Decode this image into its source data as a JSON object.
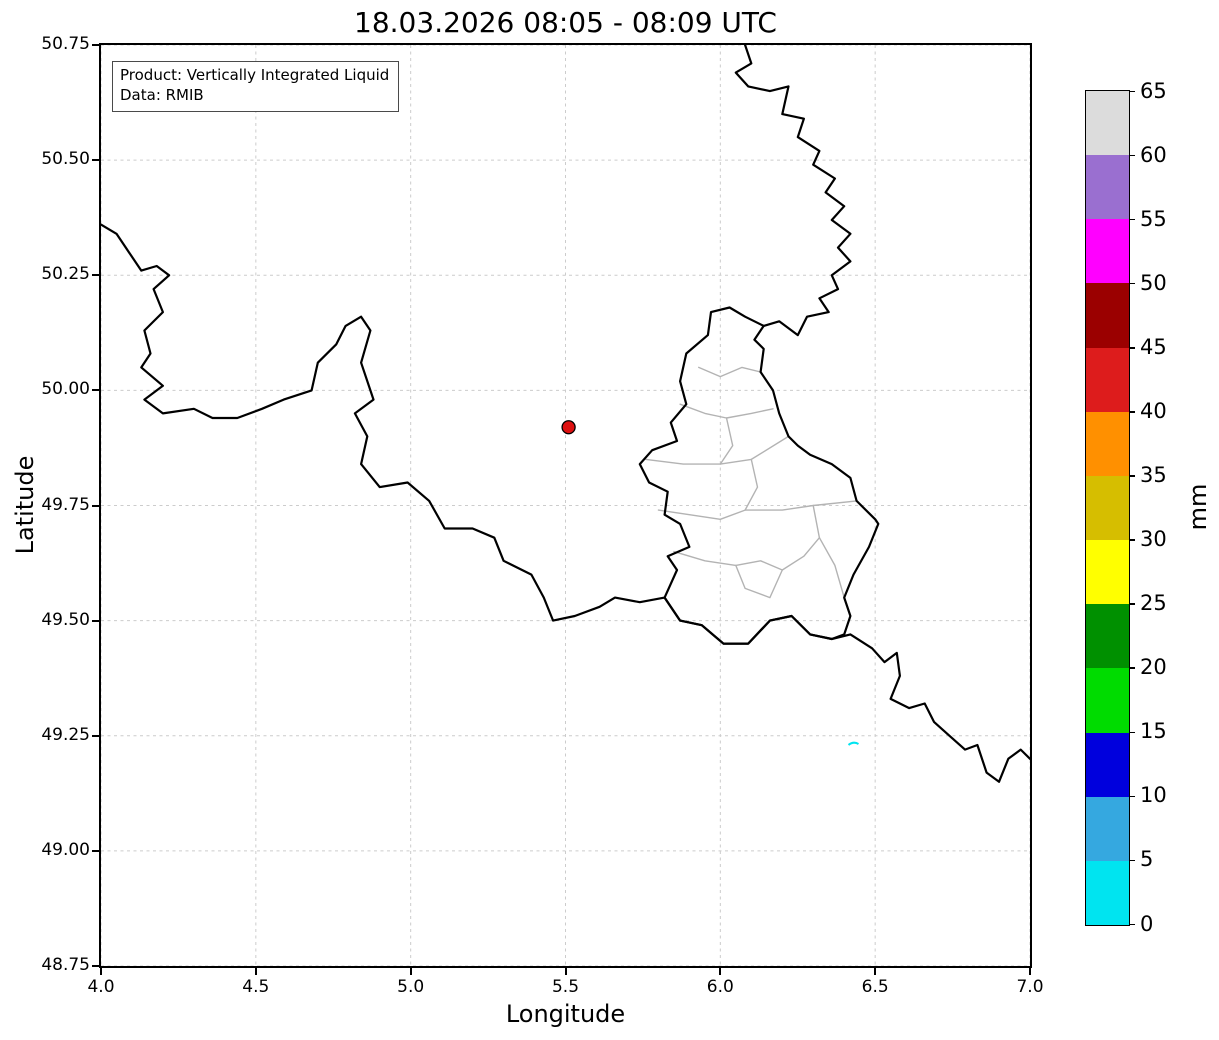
{
  "title": "18.03.2026 08:05 - 08:09 UTC",
  "annotation": {
    "line1": "Product: Vertically Integrated Liquid",
    "line2": "Data: RMIB"
  },
  "axes": {
    "xlabel": "Longitude",
    "ylabel": "Latitude",
    "xlim": [
      4.0,
      7.0
    ],
    "ylim": [
      48.75,
      50.75
    ],
    "xticks": [
      "4.0",
      "4.5",
      "5.0",
      "5.5",
      "6.0",
      "6.5",
      "7.0"
    ],
    "yticks": [
      "48.75",
      "49.00",
      "49.25",
      "49.50",
      "49.75",
      "50.00",
      "50.25",
      "50.50",
      "50.75"
    ],
    "grid": "dashed-light"
  },
  "colorbar": {
    "label": "mm",
    "ticks": [
      "0",
      "5",
      "10",
      "15",
      "20",
      "25",
      "30",
      "35",
      "40",
      "45",
      "50",
      "55",
      "60",
      "65"
    ],
    "min": 0,
    "max": 65,
    "colors_bottom_to_top": [
      "#00e4f0",
      "#35a8e0",
      "#0000dd",
      "#00dc00",
      "#009000",
      "#ffff00",
      "#d6be00",
      "#ff9000",
      "#dd1c1c",
      "#9b0000",
      "#ff00ff",
      "#9a6fd0",
      "#dcdcdc"
    ]
  },
  "markers": [
    {
      "name": "radar-echo-marker",
      "lon": 5.51,
      "lat": 49.92,
      "fill": "#dd1010",
      "edge": "#000000",
      "approx_value_mm": "40-45"
    },
    {
      "name": "radar-echo-speck",
      "lon": 6.43,
      "lat": 49.23,
      "fill": "#00e4f0",
      "approx_value_mm": "0-5"
    }
  ],
  "map": {
    "country_border_color": "#000000",
    "region_border_color": "#b3b3b3",
    "country_borders": [
      [
        [
          4.0,
          50.36
        ],
        [
          4.05,
          50.34
        ],
        [
          4.09,
          50.3
        ],
        [
          4.13,
          50.26
        ],
        [
          4.18,
          50.27
        ],
        [
          4.22,
          50.25
        ],
        [
          4.17,
          50.22
        ],
        [
          4.2,
          50.17
        ],
        [
          4.14,
          50.13
        ],
        [
          4.16,
          50.08
        ],
        [
          4.13,
          50.05
        ],
        [
          4.2,
          50.01
        ],
        [
          4.14,
          49.98
        ],
        [
          4.2,
          49.95
        ],
        [
          4.3,
          49.96
        ],
        [
          4.36,
          49.94
        ],
        [
          4.44,
          49.94
        ],
        [
          4.52,
          49.96
        ],
        [
          4.59,
          49.98
        ],
        [
          4.68,
          50.0
        ],
        [
          4.7,
          50.06
        ],
        [
          4.76,
          50.1
        ],
        [
          4.79,
          50.14
        ],
        [
          4.84,
          50.16
        ],
        [
          4.87,
          50.13
        ],
        [
          4.84,
          50.06
        ],
        [
          4.88,
          49.98
        ],
        [
          4.82,
          49.95
        ],
        [
          4.86,
          49.9
        ],
        [
          4.84,
          49.84
        ],
        [
          4.9,
          49.79
        ],
        [
          4.99,
          49.8
        ],
        [
          5.06,
          49.76
        ],
        [
          5.11,
          49.7
        ],
        [
          5.2,
          49.7
        ],
        [
          5.27,
          49.68
        ],
        [
          5.3,
          49.63
        ],
        [
          5.39,
          49.6
        ],
        [
          5.43,
          49.55
        ],
        [
          5.46,
          49.5
        ],
        [
          5.53,
          49.51
        ],
        [
          5.61,
          49.53
        ],
        [
          5.66,
          49.55
        ],
        [
          5.74,
          49.54
        ],
        [
          5.82,
          49.55
        ],
        [
          5.87,
          49.5
        ],
        [
          5.94,
          49.49
        ],
        [
          6.01,
          49.45
        ],
        [
          6.09,
          49.45
        ],
        [
          6.16,
          49.5
        ],
        [
          6.23,
          49.51
        ],
        [
          6.29,
          49.47
        ],
        [
          6.36,
          49.46
        ],
        [
          6.42,
          49.47
        ],
        [
          6.49,
          49.44
        ],
        [
          6.53,
          49.41
        ],
        [
          6.57,
          49.43
        ],
        [
          6.58,
          49.38
        ],
        [
          6.55,
          49.33
        ],
        [
          6.61,
          49.31
        ],
        [
          6.66,
          49.32
        ],
        [
          6.69,
          49.28
        ],
        [
          6.74,
          49.25
        ],
        [
          6.79,
          49.22
        ],
        [
          6.83,
          49.23
        ],
        [
          6.86,
          49.17
        ],
        [
          6.9,
          49.15
        ],
        [
          6.93,
          49.2
        ],
        [
          6.97,
          49.22
        ],
        [
          7.0,
          49.2
        ]
      ],
      [
        [
          6.08,
          50.75
        ],
        [
          6.1,
          50.71
        ],
        [
          6.05,
          50.69
        ],
        [
          6.09,
          50.66
        ],
        [
          6.16,
          50.65
        ],
        [
          6.22,
          50.66
        ],
        [
          6.2,
          50.6
        ],
        [
          6.27,
          50.59
        ],
        [
          6.25,
          50.55
        ],
        [
          6.32,
          50.52
        ],
        [
          6.3,
          50.49
        ],
        [
          6.37,
          50.46
        ],
        [
          6.34,
          50.43
        ],
        [
          6.4,
          50.4
        ],
        [
          6.36,
          50.37
        ],
        [
          6.42,
          50.34
        ],
        [
          6.38,
          50.31
        ],
        [
          6.42,
          50.28
        ],
        [
          6.36,
          50.25
        ],
        [
          6.38,
          50.22
        ],
        [
          6.32,
          50.2
        ],
        [
          6.35,
          50.17
        ],
        [
          6.28,
          50.16
        ],
        [
          6.25,
          50.12
        ],
        [
          6.19,
          50.15
        ],
        [
          6.14,
          50.14
        ]
      ],
      [
        [
          6.14,
          50.14
        ],
        [
          6.08,
          50.16
        ],
        [
          6.03,
          50.18
        ],
        [
          5.97,
          50.17
        ],
        [
          5.96,
          50.12
        ],
        [
          5.89,
          50.08
        ],
        [
          5.87,
          50.02
        ],
        [
          5.89,
          49.97
        ],
        [
          5.84,
          49.93
        ],
        [
          5.86,
          49.89
        ],
        [
          5.78,
          49.87
        ],
        [
          5.74,
          49.84
        ],
        [
          5.77,
          49.8
        ],
        [
          5.83,
          49.78
        ],
        [
          5.82,
          49.73
        ],
        [
          5.87,
          49.71
        ],
        [
          5.9,
          49.66
        ],
        [
          5.83,
          49.64
        ],
        [
          5.86,
          49.61
        ],
        [
          5.84,
          49.58
        ],
        [
          5.82,
          49.55
        ],
        [
          5.87,
          49.5
        ],
        [
          5.94,
          49.49
        ],
        [
          6.01,
          49.45
        ],
        [
          6.09,
          49.45
        ],
        [
          6.16,
          49.5
        ],
        [
          6.23,
          49.51
        ],
        [
          6.29,
          49.47
        ],
        [
          6.36,
          49.46
        ],
        [
          6.4,
          49.47
        ],
        [
          6.42,
          49.51
        ],
        [
          6.4,
          49.55
        ],
        [
          6.43,
          49.6
        ],
        [
          6.48,
          49.66
        ],
        [
          6.51,
          49.71
        ],
        [
          6.5,
          49.72
        ],
        [
          6.44,
          49.76
        ],
        [
          6.42,
          49.81
        ],
        [
          6.36,
          49.84
        ],
        [
          6.29,
          49.86
        ],
        [
          6.25,
          49.88
        ],
        [
          6.22,
          49.9
        ],
        [
          6.19,
          49.95
        ],
        [
          6.17,
          50.0
        ],
        [
          6.13,
          50.04
        ],
        [
          6.14,
          50.09
        ],
        [
          6.11,
          50.11
        ],
        [
          6.14,
          50.14
        ]
      ]
    ],
    "region_borders": [
      [
        [
          5.93,
          50.05
        ],
        [
          6.0,
          50.03
        ],
        [
          6.07,
          50.05
        ],
        [
          6.13,
          50.04
        ]
      ],
      [
        [
          5.87,
          49.97
        ],
        [
          5.95,
          49.95
        ],
        [
          6.02,
          49.94
        ],
        [
          6.1,
          49.95
        ],
        [
          6.17,
          49.96
        ]
      ],
      [
        [
          6.02,
          49.94
        ],
        [
          6.04,
          49.88
        ],
        [
          6.0,
          49.84
        ]
      ],
      [
        [
          5.76,
          49.85
        ],
        [
          5.88,
          49.84
        ],
        [
          6.0,
          49.84
        ],
        [
          6.1,
          49.85
        ],
        [
          6.22,
          49.9
        ]
      ],
      [
        [
          6.1,
          49.85
        ],
        [
          6.12,
          49.79
        ],
        [
          6.08,
          49.74
        ]
      ],
      [
        [
          5.8,
          49.74
        ],
        [
          5.9,
          49.73
        ],
        [
          6.0,
          49.72
        ],
        [
          6.08,
          49.74
        ],
        [
          6.2,
          49.74
        ],
        [
          6.3,
          49.75
        ],
        [
          6.44,
          49.76
        ]
      ],
      [
        [
          6.3,
          49.75
        ],
        [
          6.32,
          49.68
        ],
        [
          6.37,
          49.62
        ],
        [
          6.4,
          49.55
        ]
      ],
      [
        [
          5.85,
          49.65
        ],
        [
          5.95,
          49.63
        ],
        [
          6.05,
          49.62
        ],
        [
          6.13,
          49.63
        ],
        [
          6.2,
          49.61
        ],
        [
          6.27,
          49.64
        ],
        [
          6.32,
          49.68
        ]
      ],
      [
        [
          6.05,
          49.62
        ],
        [
          6.08,
          49.57
        ],
        [
          6.16,
          49.55
        ],
        [
          6.2,
          49.61
        ]
      ]
    ]
  },
  "chart_data": {
    "type": "map",
    "title": "18.03.2026 08:05 - 08:09 UTC",
    "xlabel": "Longitude",
    "ylabel": "Latitude",
    "xlim": [
      4.0,
      7.0
    ],
    "ylim": [
      48.75,
      50.75
    ],
    "colorbar": {
      "label": "mm",
      "min": 0,
      "max": 65,
      "step": 5
    },
    "points": [
      {
        "lon": 5.51,
        "lat": 49.92,
        "color": "red",
        "approx_value_mm": "40-45"
      },
      {
        "lon": 6.43,
        "lat": 49.23,
        "color": "cyan",
        "approx_value_mm": "0-5"
      }
    ]
  }
}
